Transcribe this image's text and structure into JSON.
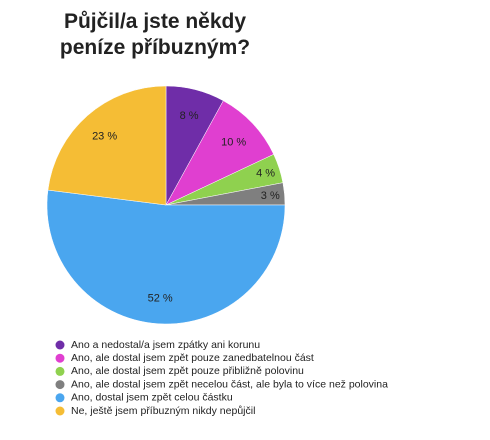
{
  "chart_data": {
    "type": "pie",
    "title": [
      "Půjčil/a jste někdy",
      "peníze příbuzným?"
    ],
    "categories": [
      "Ano a nedostal/a jsem zpátky ani korunu",
      "Ano, ale dostal jsem zpět pouze zanedbatelnou část",
      "Ano, ale dostal jsem zpět pouze přibližně polovinu",
      "Ano, ale dostal jsem zpět necelou část, ale byla to více než polovina",
      "Ano, dostal jsem zpět celou částku",
      "Ne, ještě jsem příbuzným nikdy nepůjčil"
    ],
    "values": [
      8,
      10,
      4,
      3,
      52,
      23
    ],
    "value_labels": [
      "8 %",
      "10 %",
      "4 %",
      "3 %",
      "52 %",
      "23 %"
    ],
    "colors": [
      "#6f2da8",
      "#e03fd0",
      "#8fd14f",
      "#7f7f7f",
      "#4aa6ef",
      "#f5bd35"
    ]
  }
}
